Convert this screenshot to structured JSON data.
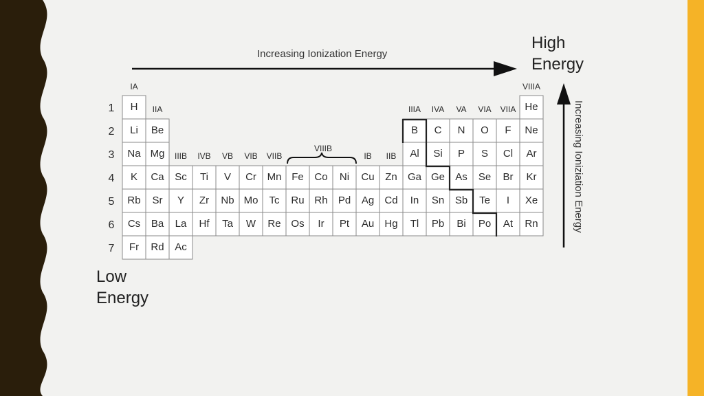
{
  "slide": {
    "top_arrow_label": "Increasing Ionization Energy",
    "side_arrow_label": "Increasing Ioniziation Energy",
    "high_label": "High Energy",
    "low_label": "Low Energy"
  },
  "colors": {
    "left_decoration": "#2a1e0b",
    "right_bar": "#f5b327",
    "background": "#f2f2f0"
  },
  "periodic_table": {
    "group_labels": [
      {
        "label": "IA",
        "col": 0,
        "row": -1
      },
      {
        "label": "IIA",
        "col": 1,
        "row": 0
      },
      {
        "label": "IIIB",
        "col": 2,
        "row": 2
      },
      {
        "label": "IVB",
        "col": 3,
        "row": 2
      },
      {
        "label": "VB",
        "col": 4,
        "row": 2
      },
      {
        "label": "VIB",
        "col": 5,
        "row": 2
      },
      {
        "label": "VIIB",
        "col": 6,
        "row": 2
      },
      {
        "label": "IB",
        "col": 10,
        "row": 2
      },
      {
        "label": "IIB",
        "col": 11,
        "row": 2
      },
      {
        "label": "IIIA",
        "col": 12,
        "row": 0
      },
      {
        "label": "IVA",
        "col": 13,
        "row": 0
      },
      {
        "label": "VA",
        "col": 14,
        "row": 0
      },
      {
        "label": "VIA",
        "col": 15,
        "row": 0
      },
      {
        "label": "VIIA",
        "col": 16,
        "row": 0
      },
      {
        "label": "VIIIA",
        "col": 17,
        "row": -1
      }
    ],
    "viiib_label": "VIIIB",
    "periods": [
      "1",
      "2",
      "3",
      "4",
      "5",
      "6",
      "7"
    ],
    "elements": [
      {
        "s": "H",
        "r": 0,
        "c": 0
      },
      {
        "s": "He",
        "r": 0,
        "c": 17
      },
      {
        "s": "Li",
        "r": 1,
        "c": 0
      },
      {
        "s": "Be",
        "r": 1,
        "c": 1
      },
      {
        "s": "B",
        "r": 1,
        "c": 12
      },
      {
        "s": "C",
        "r": 1,
        "c": 13
      },
      {
        "s": "N",
        "r": 1,
        "c": 14
      },
      {
        "s": "O",
        "r": 1,
        "c": 15
      },
      {
        "s": "F",
        "r": 1,
        "c": 16
      },
      {
        "s": "Ne",
        "r": 1,
        "c": 17
      },
      {
        "s": "Na",
        "r": 2,
        "c": 0
      },
      {
        "s": "Mg",
        "r": 2,
        "c": 1
      },
      {
        "s": "Al",
        "r": 2,
        "c": 12
      },
      {
        "s": "Si",
        "r": 2,
        "c": 13
      },
      {
        "s": "P",
        "r": 2,
        "c": 14
      },
      {
        "s": "S",
        "r": 2,
        "c": 15
      },
      {
        "s": "Cl",
        "r": 2,
        "c": 16
      },
      {
        "s": "Ar",
        "r": 2,
        "c": 17
      },
      {
        "s": "K",
        "r": 3,
        "c": 0
      },
      {
        "s": "Ca",
        "r": 3,
        "c": 1
      },
      {
        "s": "Sc",
        "r": 3,
        "c": 2
      },
      {
        "s": "Ti",
        "r": 3,
        "c": 3
      },
      {
        "s": "V",
        "r": 3,
        "c": 4
      },
      {
        "s": "Cr",
        "r": 3,
        "c": 5
      },
      {
        "s": "Mn",
        "r": 3,
        "c": 6
      },
      {
        "s": "Fe",
        "r": 3,
        "c": 7
      },
      {
        "s": "Co",
        "r": 3,
        "c": 8
      },
      {
        "s": "Ni",
        "r": 3,
        "c": 9
      },
      {
        "s": "Cu",
        "r": 3,
        "c": 10
      },
      {
        "s": "Zn",
        "r": 3,
        "c": 11
      },
      {
        "s": "Ga",
        "r": 3,
        "c": 12
      },
      {
        "s": "Ge",
        "r": 3,
        "c": 13
      },
      {
        "s": "As",
        "r": 3,
        "c": 14
      },
      {
        "s": "Se",
        "r": 3,
        "c": 15
      },
      {
        "s": "Br",
        "r": 3,
        "c": 16
      },
      {
        "s": "Kr",
        "r": 3,
        "c": 17
      },
      {
        "s": "Rb",
        "r": 4,
        "c": 0
      },
      {
        "s": "Sr",
        "r": 4,
        "c": 1
      },
      {
        "s": "Y",
        "r": 4,
        "c": 2
      },
      {
        "s": "Zr",
        "r": 4,
        "c": 3
      },
      {
        "s": "Nb",
        "r": 4,
        "c": 4
      },
      {
        "s": "Mo",
        "r": 4,
        "c": 5
      },
      {
        "s": "Tc",
        "r": 4,
        "c": 6
      },
      {
        "s": "Ru",
        "r": 4,
        "c": 7
      },
      {
        "s": "Rh",
        "r": 4,
        "c": 8
      },
      {
        "s": "Pd",
        "r": 4,
        "c": 9
      },
      {
        "s": "Ag",
        "r": 4,
        "c": 10
      },
      {
        "s": "Cd",
        "r": 4,
        "c": 11
      },
      {
        "s": "In",
        "r": 4,
        "c": 12
      },
      {
        "s": "Sn",
        "r": 4,
        "c": 13
      },
      {
        "s": "Sb",
        "r": 4,
        "c": 14
      },
      {
        "s": "Te",
        "r": 4,
        "c": 15
      },
      {
        "s": "I",
        "r": 4,
        "c": 16
      },
      {
        "s": "Xe",
        "r": 4,
        "c": 17
      },
      {
        "s": "Cs",
        "r": 5,
        "c": 0
      },
      {
        "s": "Ba",
        "r": 5,
        "c": 1
      },
      {
        "s": "La",
        "r": 5,
        "c": 2
      },
      {
        "s": "Hf",
        "r": 5,
        "c": 3
      },
      {
        "s": "Ta",
        "r": 5,
        "c": 4
      },
      {
        "s": "W",
        "r": 5,
        "c": 5
      },
      {
        "s": "Re",
        "r": 5,
        "c": 6
      },
      {
        "s": "Os",
        "r": 5,
        "c": 7
      },
      {
        "s": "Ir",
        "r": 5,
        "c": 8
      },
      {
        "s": "Pt",
        "r": 5,
        "c": 9
      },
      {
        "s": "Au",
        "r": 5,
        "c": 10
      },
      {
        "s": "Hg",
        "r": 5,
        "c": 11
      },
      {
        "s": "Tl",
        "r": 5,
        "c": 12
      },
      {
        "s": "Pb",
        "r": 5,
        "c": 13
      },
      {
        "s": "Bi",
        "r": 5,
        "c": 14
      },
      {
        "s": "Po",
        "r": 5,
        "c": 15
      },
      {
        "s": "At",
        "r": 5,
        "c": 16
      },
      {
        "s": "Rn",
        "r": 5,
        "c": 17
      },
      {
        "s": "Fr",
        "r": 6,
        "c": 0
      },
      {
        "s": "Rd",
        "r": 6,
        "c": 1
      },
      {
        "s": "Ac",
        "r": 6,
        "c": 2
      }
    ]
  }
}
